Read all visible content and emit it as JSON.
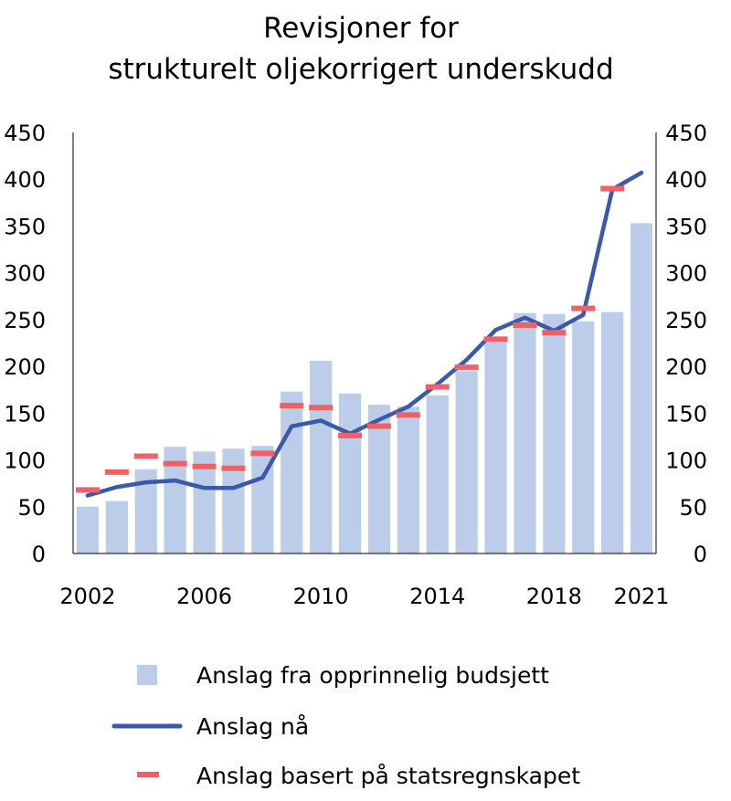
{
  "chart_data": {
    "type": "bar",
    "title": "Revisjoner for",
    "title_line2": "strukturelt oljekorrigert underskudd",
    "x_years": [
      2002,
      2003,
      2004,
      2005,
      2006,
      2007,
      2008,
      2009,
      2010,
      2011,
      2012,
      2013,
      2014,
      2015,
      2016,
      2017,
      2018,
      2019,
      2020,
      2021
    ],
    "x_tick_labels": [
      "2002",
      "2006",
      "2010",
      "2014",
      "2018",
      "2021"
    ],
    "x_tick_years": [
      2002,
      2006,
      2010,
      2014,
      2018,
      2021
    ],
    "ylim": [
      0,
      450
    ],
    "y_ticks": [
      0,
      50,
      100,
      150,
      200,
      250,
      300,
      350,
      400,
      450
    ],
    "grid": false,
    "series": [
      {
        "name": "Anslag fra opprinnelig budsjett",
        "kind": "bar",
        "color": "#bccde9",
        "values": [
          50,
          56,
          90,
          114,
          109,
          112,
          115,
          173,
          206,
          171,
          159,
          157,
          169,
          195,
          226,
          257,
          256,
          248,
          258,
          353
        ]
      },
      {
        "name": "Anslag nå",
        "kind": "line",
        "color": "#3a59a8",
        "values": [
          62,
          71,
          76,
          78,
          70,
          70,
          81,
          136,
          142,
          128,
          143,
          157,
          181,
          207,
          239,
          252,
          238,
          255,
          389,
          407
        ]
      },
      {
        "name": "Anslag basert på statsregnskapet",
        "kind": "dash",
        "color": "#ef6167",
        "values": [
          68,
          87,
          104,
          96,
          93,
          91,
          107,
          158,
          156,
          126,
          136,
          148,
          178,
          199,
          229,
          244,
          236,
          262,
          390,
          null
        ]
      }
    ],
    "legend_position": "bottom"
  }
}
